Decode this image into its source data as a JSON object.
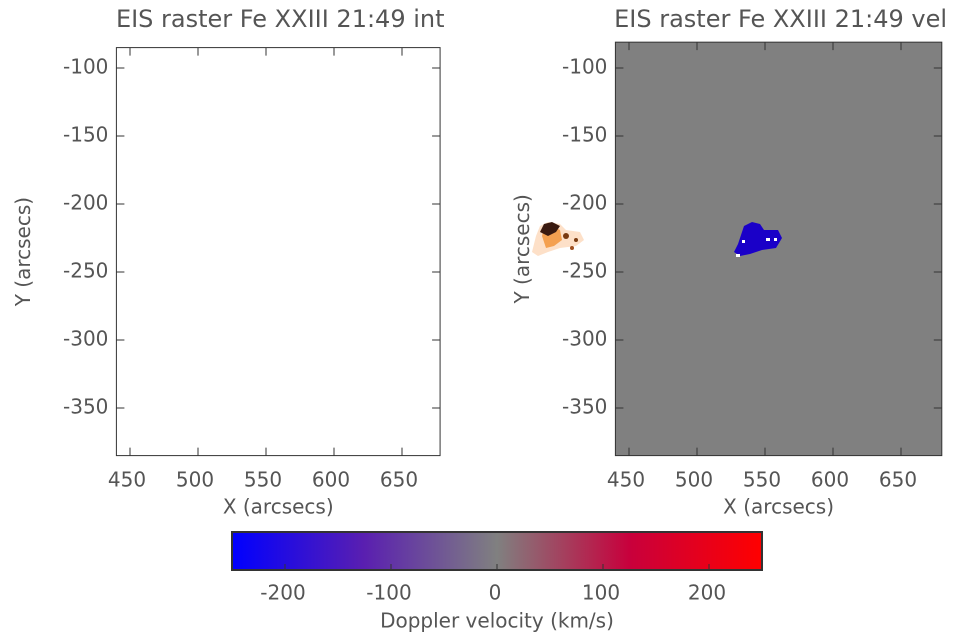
{
  "chart_data": [
    {
      "type": "image",
      "title": "EIS raster Fe XXIII 21:49 int",
      "x_label": "X (arcsecs)",
      "y_label": "Y (arcsecs)",
      "xlim": [
        440,
        678
      ],
      "ylim": [
        -385,
        -85
      ],
      "xticks": [
        450,
        500,
        550,
        600,
        650
      ],
      "yticks": [
        -100,
        -150,
        -200,
        -250,
        -300,
        -350
      ],
      "background": "#ffffff"
    },
    {
      "type": "image",
      "title": "EIS raster Fe XXIII 21:49 vel",
      "x_label": "X (arcsecs)",
      "y_label": "Y (arcsecs)",
      "xlim": [
        440,
        680
      ],
      "ylim": [
        -385,
        -81
      ],
      "xticks": [
        450,
        500,
        550,
        600,
        650
      ],
      "yticks": [
        -100,
        -150,
        -200,
        -250,
        -300,
        -350
      ],
      "background": "#808080"
    },
    {
      "type": "colorbar",
      "x_label": "Doppler velocity (km/s)",
      "xlim": [
        -250,
        250
      ],
      "xticks": [
        -200,
        -100,
        0,
        100,
        200
      ],
      "colors": [
        "#0000ff",
        "#5a1fb0",
        "#808080",
        "#c8003c",
        "#ff0000"
      ]
    }
  ]
}
